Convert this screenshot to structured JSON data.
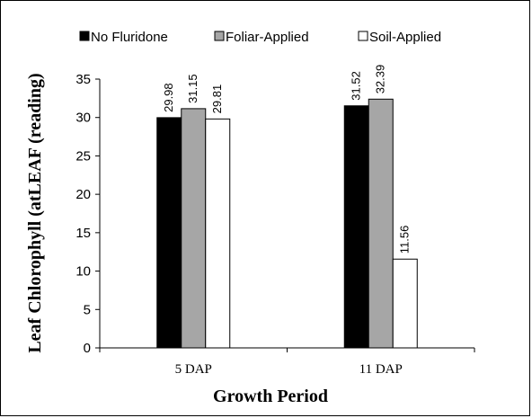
{
  "chart_data": {
    "type": "bar",
    "categories": [
      "5 DAP",
      "11 DAP"
    ],
    "series": [
      {
        "name": "No Fluridone",
        "values": [
          29.98,
          31.52
        ],
        "color": "#000000"
      },
      {
        "name": "Foliar-Applied",
        "values": [
          31.15,
          32.39
        ],
        "color": "#a6a6a6"
      },
      {
        "name": "Soil-Applied",
        "values": [
          29.81,
          11.56
        ],
        "color": "#ffffff"
      }
    ],
    "data_labels": [
      [
        "29.98",
        "31.52"
      ],
      [
        "31.15",
        "32.39"
      ],
      [
        "29.81",
        "11.56"
      ]
    ],
    "title": "",
    "xlabel": "Growth Period",
    "ylabel": "Leaf Chlorophyll (atLEAF (reading)",
    "ylim": [
      0,
      35
    ],
    "yticks": [
      0,
      5,
      10,
      15,
      20,
      25,
      30,
      35
    ],
    "grid": false,
    "legend_position": "top"
  }
}
